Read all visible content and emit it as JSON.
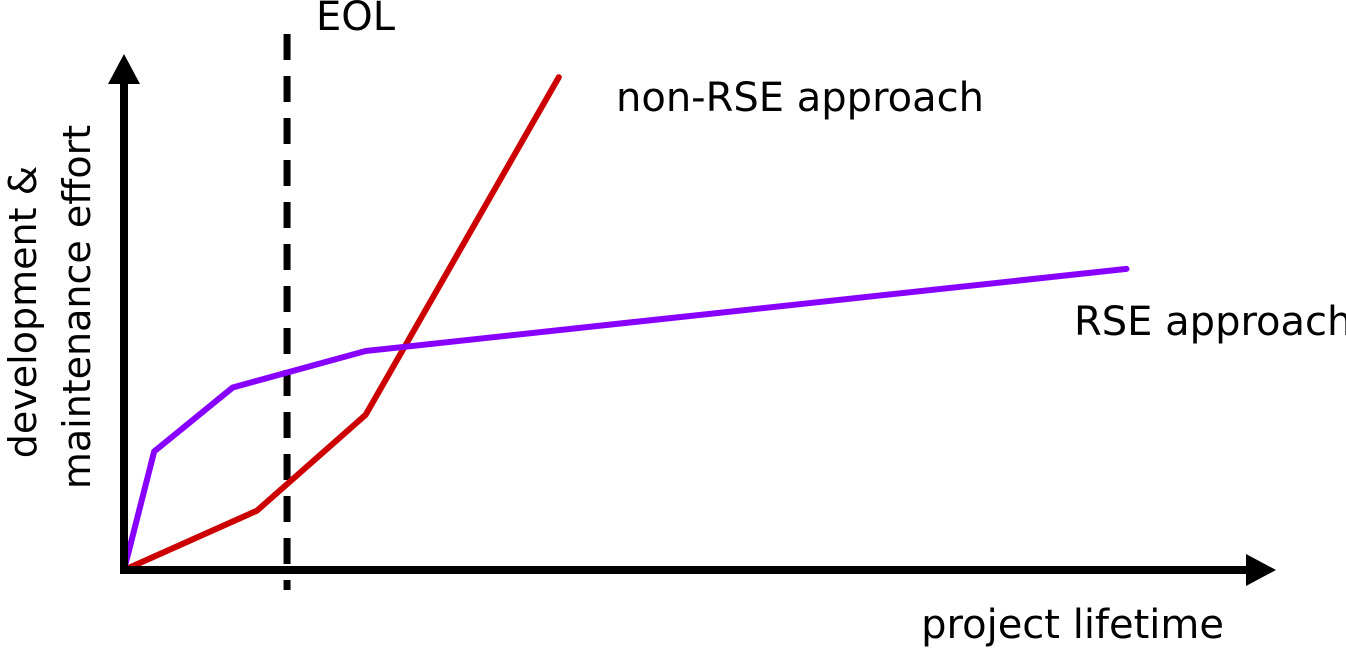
{
  "chart_data": {
    "type": "line",
    "title": "",
    "xlabel": "project lifetime",
    "ylabel_lines": [
      "development &",
      "maintenance effort"
    ],
    "grid": false,
    "marker": {
      "label": "EOL",
      "x": 1.35,
      "style": "dashed",
      "color": "#000000"
    },
    "xlim": [
      0,
      9
    ],
    "ylim": [
      0,
      5.6
    ],
    "series": [
      {
        "name": "non-RSE approach",
        "color": "#cc0000",
        "x": [
          0,
          1.1,
          2.0,
          3.6
        ],
        "y": [
          0,
          0.65,
          1.7,
          5.4
        ]
      },
      {
        "name": "RSE approach",
        "color": "#8800ff",
        "x": [
          0,
          0.25,
          0.9,
          2.0,
          8.3
        ],
        "y": [
          0,
          1.3,
          2.0,
          2.4,
          3.3
        ]
      }
    ]
  }
}
